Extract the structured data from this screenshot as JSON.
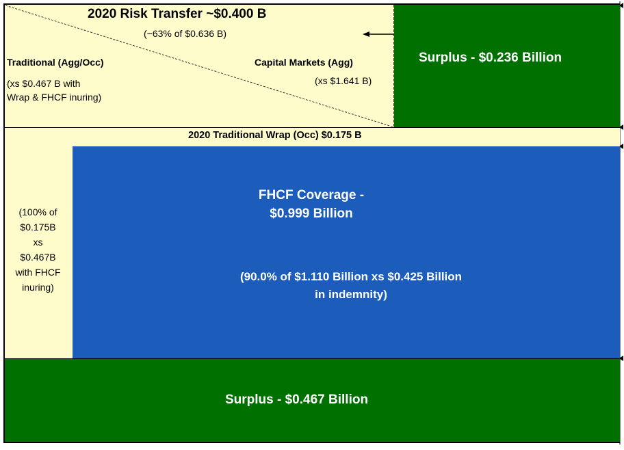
{
  "risk_transfer": {
    "title": "2020 Risk Transfer ~$0.400 B",
    "subtitle": "(~63% of $0.636 B)",
    "traditional_label": "Traditional (Agg/Occ)",
    "traditional_detail_1": "(xs $0.467 B with",
    "traditional_detail_2": "Wrap & FHCF inuring)",
    "capital_markets_label": "Capital Markets (Agg)",
    "capital_markets_detail": "(xs $1.641 B)"
  },
  "surplus_top": {
    "label": "Surplus - $0.236 Billion"
  },
  "wrap": {
    "label": "2020 Traditional Wrap  (Occ) $0.175 B"
  },
  "wrap_side": {
    "lines": [
      "(100% of",
      "$0.175B",
      "xs",
      "$0.467B",
      "with FHCF",
      "inuring)"
    ]
  },
  "fhcf": {
    "title_1": "FHCF Coverage  -",
    "title_2": "$0.999 Billion",
    "detail_1": "(90.0% of $1.110 Billion xs $0.425 Billion",
    "detail_2": "in indemnity)"
  },
  "surplus_bottom": {
    "label": "Surplus - $0.467 Billion"
  },
  "colors": {
    "yellow": "#fffccc",
    "green": "#007000",
    "blue": "#1c5cba",
    "border": "#000000"
  }
}
